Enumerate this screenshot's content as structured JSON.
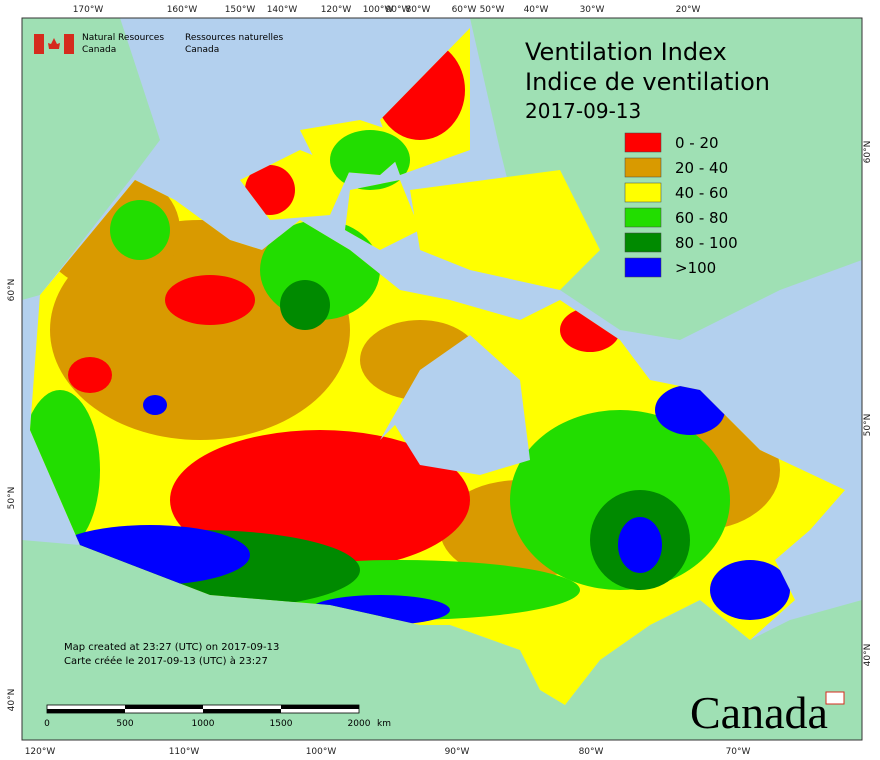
{
  "header": {
    "agency_en": [
      "Natural Resources",
      "Canada"
    ],
    "agency_fr": [
      "Ressources naturelles",
      "Canada"
    ]
  },
  "title": [
    "Ventilation Index",
    "Indice de ventilation",
    "2017-09-13"
  ],
  "legend": [
    {
      "label": "0 - 20",
      "color": "#ff0000"
    },
    {
      "label": "20 - 40",
      "color": "#d99a00"
    },
    {
      "label": "40 - 60",
      "color": "#ffff00"
    },
    {
      "label": "60 - 80",
      "color": "#22dd00"
    },
    {
      "label": "80 - 100",
      "color": "#008a00"
    },
    {
      "label": ">100",
      "color": "#0000ff"
    }
  ],
  "graticule": {
    "top": [
      "170°W",
      "160°W",
      "150°W",
      "140°W",
      "120°W",
      "100°W",
      "90°W",
      "80°W",
      "60°W",
      "50°W",
      "40°W",
      "30°W",
      "20°W"
    ],
    "bottom": [
      "120°W",
      "110°W",
      "100°W",
      "90°W",
      "80°W",
      "70°W"
    ],
    "left": [
      "60°N",
      "50°N",
      "40°N"
    ],
    "right": [
      "60°N",
      "50°N",
      "40°N"
    ]
  },
  "notes": [
    "Map created at 23:27 (UTC) on 2017-09-13",
    "Carte créée le 2017-09-13 (UTC) à 23:27"
  ],
  "scale_bar": {
    "labels": [
      "0",
      "500",
      "1000",
      "1500",
      "2000"
    ],
    "unit": "km"
  },
  "wordmark": "Canada"
}
